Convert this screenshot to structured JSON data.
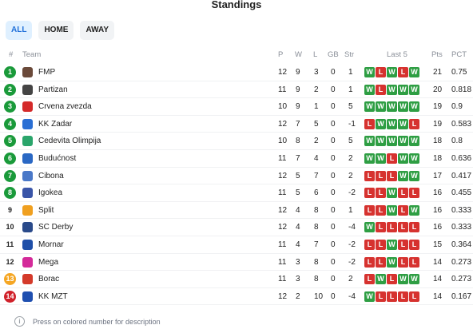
{
  "title": "Standings",
  "filters": [
    "ALL",
    "HOME",
    "AWAY"
  ],
  "headers": {
    "rank": "#",
    "team": "Team",
    "p": "P",
    "w": "W",
    "l": "L",
    "gb": "GB",
    "str": "Str",
    "last5": "Last 5",
    "pts": "Pts",
    "pct": "PCT"
  },
  "colors": {
    "green": "#1a9a3a",
    "orange": "#f5a623",
    "red": "#d0212a",
    "win": "#2e9e43",
    "loss": "#d6322f"
  },
  "teams": [
    {
      "rank": "1",
      "rank_color": "#1a9a3a",
      "name": "FMP",
      "logo_color": "#6b4a3a",
      "p": "12",
      "w": "9",
      "l": "3",
      "gb": "0",
      "str": "1",
      "form": [
        "W",
        "L",
        "W",
        "L",
        "W"
      ],
      "pts": "21",
      "pct": "0.75"
    },
    {
      "rank": "2",
      "rank_color": "#1a9a3a",
      "name": "Partizan",
      "logo_color": "#444444",
      "p": "11",
      "w": "9",
      "l": "2",
      "gb": "0",
      "str": "1",
      "form": [
        "W",
        "L",
        "W",
        "W",
        "W"
      ],
      "pts": "20",
      "pct": "0.818"
    },
    {
      "rank": "3",
      "rank_color": "#1a9a3a",
      "name": "Crvena zvezda",
      "logo_color": "#d42a2a",
      "p": "10",
      "w": "9",
      "l": "1",
      "gb": "0",
      "str": "5",
      "form": [
        "W",
        "W",
        "W",
        "W",
        "W"
      ],
      "pts": "19",
      "pct": "0.9"
    },
    {
      "rank": "4",
      "rank_color": "#1a9a3a",
      "name": "KK Zadar",
      "logo_color": "#2a6fd4",
      "p": "12",
      "w": "7",
      "l": "5",
      "gb": "0",
      "str": "-1",
      "form": [
        "L",
        "W",
        "W",
        "W",
        "L"
      ],
      "pts": "19",
      "pct": "0.583"
    },
    {
      "rank": "5",
      "rank_color": "#1a9a3a",
      "name": "Cedevita Olimpija",
      "logo_color": "#2aa56b",
      "p": "10",
      "w": "8",
      "l": "2",
      "gb": "0",
      "str": "5",
      "form": [
        "W",
        "W",
        "W",
        "W",
        "W"
      ],
      "pts": "18",
      "pct": "0.8"
    },
    {
      "rank": "6",
      "rank_color": "#1a9a3a",
      "name": "Budućnost",
      "logo_color": "#2a68c4",
      "p": "11",
      "w": "7",
      "l": "4",
      "gb": "0",
      "str": "2",
      "form": [
        "W",
        "W",
        "L",
        "W",
        "W"
      ],
      "pts": "18",
      "pct": "0.636"
    },
    {
      "rank": "7",
      "rank_color": "#1a9a3a",
      "name": "Cibona",
      "logo_color": "#4a78c8",
      "p": "12",
      "w": "5",
      "l": "7",
      "gb": "0",
      "str": "2",
      "form": [
        "L",
        "L",
        "L",
        "W",
        "W"
      ],
      "pts": "17",
      "pct": "0.417"
    },
    {
      "rank": "8",
      "rank_color": "#1a9a3a",
      "name": "Igokea",
      "logo_color": "#3a55a8",
      "p": "11",
      "w": "5",
      "l": "6",
      "gb": "0",
      "str": "-2",
      "form": [
        "L",
        "L",
        "W",
        "L",
        "L"
      ],
      "pts": "16",
      "pct": "0.455"
    },
    {
      "rank": "9",
      "rank_color": "",
      "name": "Split",
      "logo_color": "#f0a020",
      "p": "12",
      "w": "4",
      "l": "8",
      "gb": "0",
      "str": "1",
      "form": [
        "L",
        "L",
        "W",
        "L",
        "W"
      ],
      "pts": "16",
      "pct": "0.333"
    },
    {
      "rank": "10",
      "rank_color": "",
      "name": "SC Derby",
      "logo_color": "#2a4a8a",
      "p": "12",
      "w": "4",
      "l": "8",
      "gb": "0",
      "str": "-4",
      "form": [
        "W",
        "L",
        "L",
        "L",
        "L"
      ],
      "pts": "16",
      "pct": "0.333"
    },
    {
      "rank": "11",
      "rank_color": "",
      "name": "Mornar",
      "logo_color": "#1f4fa8",
      "p": "11",
      "w": "4",
      "l": "7",
      "gb": "0",
      "str": "-2",
      "form": [
        "L",
        "L",
        "W",
        "L",
        "L"
      ],
      "pts": "15",
      "pct": "0.364"
    },
    {
      "rank": "12",
      "rank_color": "",
      "name": "Mega",
      "logo_color": "#d42a9a",
      "p": "11",
      "w": "3",
      "l": "8",
      "gb": "0",
      "str": "-2",
      "form": [
        "L",
        "L",
        "W",
        "L",
        "L"
      ],
      "pts": "14",
      "pct": "0.273"
    },
    {
      "rank": "13",
      "rank_color": "#f5a623",
      "name": "Borac",
      "logo_color": "#d43a2a",
      "p": "11",
      "w": "3",
      "l": "8",
      "gb": "0",
      "str": "2",
      "form": [
        "L",
        "W",
        "L",
        "W",
        "W"
      ],
      "pts": "14",
      "pct": "0.273"
    },
    {
      "rank": "14",
      "rank_color": "#d0212a",
      "name": "KK MZT",
      "logo_color": "#1f4fb0",
      "p": "12",
      "w": "2",
      "l": "10",
      "gb": "0",
      "str": "-4",
      "form": [
        "W",
        "L",
        "L",
        "L",
        "L"
      ],
      "pts": "14",
      "pct": "0.167"
    }
  ],
  "footer": {
    "text": "Press on colored number for description",
    "icon": "info-icon"
  }
}
